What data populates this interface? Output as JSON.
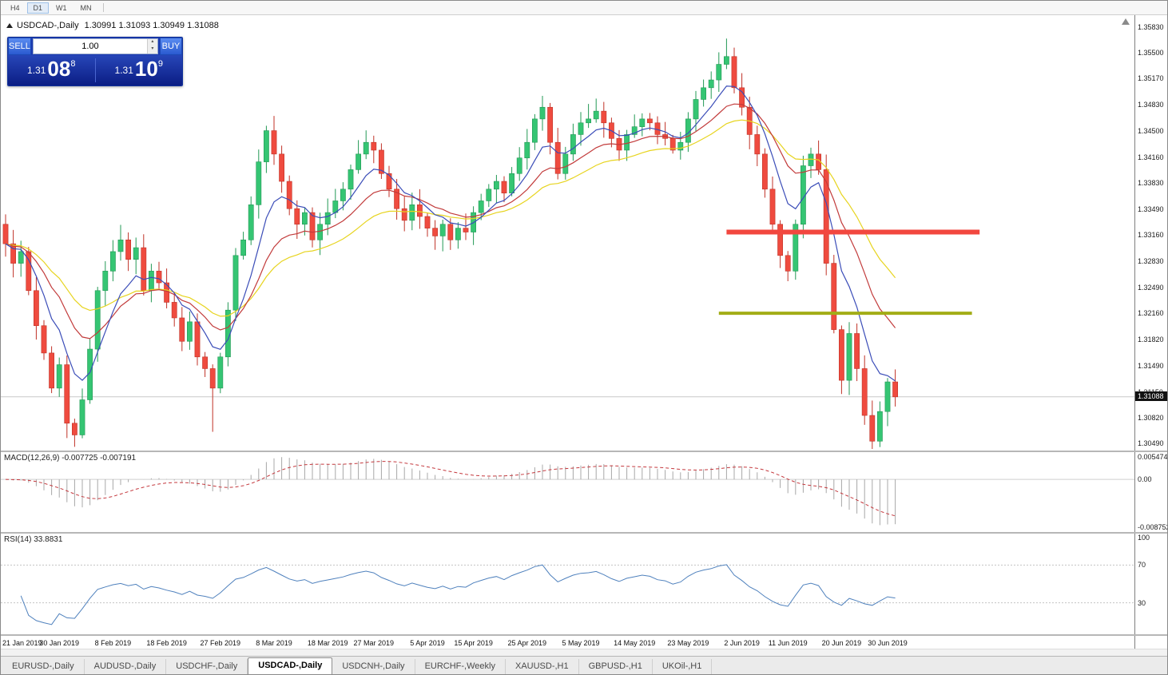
{
  "toolbar": {
    "timeframes": [
      {
        "label": "H4",
        "active": false
      },
      {
        "label": "D1",
        "active": true
      },
      {
        "label": "W1",
        "active": false
      },
      {
        "label": "MN",
        "active": false
      }
    ]
  },
  "chart": {
    "symbol_title": "USDCAD-,Daily",
    "ohlc_line": "1.30991 1.31093 1.30949 1.31088"
  },
  "trade_panel": {
    "sell_label": "SELL",
    "buy_label": "BUY",
    "lot_value": "1.00",
    "sell_price": {
      "prefix": "1.31",
      "big": "08",
      "sup": "8"
    },
    "buy_price": {
      "prefix": "1.31",
      "big": "10",
      "sup": "9"
    }
  },
  "price_axis": {
    "ticks": [
      "1.35830",
      "1.35500",
      "1.35170",
      "1.34830",
      "1.34500",
      "1.34160",
      "1.33830",
      "1.33490",
      "1.33160",
      "1.32830",
      "1.32490",
      "1.32160",
      "1.31820",
      "1.31490",
      "1.31150",
      "1.30820",
      "1.30490"
    ],
    "current_label": "1.31088"
  },
  "macd_panel": {
    "label": "MACD(12,26,9) -0.007725 -0.007191",
    "axis_top": "0.005474",
    "axis_zero": "0.00",
    "axis_bottom": "-0.008752"
  },
  "rsi_panel": {
    "label": "RSI(14) 33.8831",
    "axis_labels": [
      "100",
      "70",
      "30"
    ]
  },
  "tabs": [
    {
      "label": "EURUSD-,Daily",
      "active": false
    },
    {
      "label": "AUDUSD-,Daily",
      "active": false
    },
    {
      "label": "USDCHF-,Daily",
      "active": false
    },
    {
      "label": "USDCAD-,Daily",
      "active": true
    },
    {
      "label": "USDCNH-,Daily",
      "active": false
    },
    {
      "label": "EURCHF-,Weekly",
      "active": false
    },
    {
      "label": "XAUUSD-,H1",
      "active": false
    },
    {
      "label": "GBPUSD-,H1",
      "active": false
    },
    {
      "label": "UKOil-,H1",
      "active": false
    }
  ],
  "chart_data": {
    "type": "candlestick",
    "symbol": "USDCAD",
    "timeframe": "Daily",
    "ohlc_display": {
      "open": 1.30991,
      "high": 1.31093,
      "low": 1.30949,
      "close": 1.31088
    },
    "current_price": 1.31088,
    "y_range": [
      1.304,
      1.3598
    ],
    "first_open": 1.333,
    "closes": [
      1.3305,
      1.328,
      1.3295,
      1.3245,
      1.32,
      1.3165,
      1.312,
      1.315,
      1.3075,
      1.306,
      1.3105,
      1.317,
      1.3245,
      1.327,
      1.3295,
      1.331,
      1.3285,
      1.33,
      1.3245,
      1.327,
      1.3255,
      1.323,
      1.321,
      1.318,
      1.3205,
      1.316,
      1.3145,
      1.312,
      1.316,
      1.322,
      1.329,
      1.331,
      1.3355,
      1.341,
      1.345,
      1.342,
      1.3385,
      1.335,
      1.333,
      1.3345,
      1.331,
      1.333,
      1.3345,
      1.336,
      1.3375,
      1.34,
      1.342,
      1.3435,
      1.3425,
      1.3395,
      1.3375,
      1.335,
      1.3335,
      1.3355,
      1.334,
      1.3325,
      1.3315,
      1.333,
      1.331,
      1.3325,
      1.332,
      1.3345,
      1.336,
      1.3375,
      1.3385,
      1.337,
      1.3395,
      1.3415,
      1.3435,
      1.3465,
      1.348,
      1.3435,
      1.3395,
      1.342,
      1.3445,
      1.346,
      1.3465,
      1.3475,
      1.346,
      1.344,
      1.3425,
      1.3445,
      1.3455,
      1.3465,
      1.346,
      1.3445,
      1.344,
      1.3425,
      1.3435,
      1.3465,
      1.349,
      1.3505,
      1.3515,
      1.3535,
      1.3545,
      1.3505,
      1.348,
      1.3445,
      1.342,
      1.3375,
      1.333,
      1.329,
      1.327,
      1.333,
      1.3405,
      1.342,
      1.34,
      1.328,
      1.3195,
      1.313,
      1.319,
      1.3145,
      1.3085,
      1.3052,
      1.309,
      1.3128,
      1.31088
    ],
    "wick_overrides": [
      {
        "i": 8,
        "l": 1.3056
      },
      {
        "i": 27,
        "l": 1.3064
      },
      {
        "i": 94,
        "h": 1.3568
      },
      {
        "i": 113,
        "l": 1.3042
      }
    ],
    "candle_colors": {
      "up": "#35c573",
      "up_border": "#239955",
      "down": "#ef4b3f",
      "down_border": "#c03227"
    },
    "moving_averages": [
      {
        "period": 26,
        "type": "ema",
        "color": "#e7d41f"
      },
      {
        "period": 15,
        "type": "ema",
        "color": "#c23b3b"
      },
      {
        "period": 7,
        "type": "ema",
        "color": "#3b4db8"
      }
    ],
    "hlines": [
      {
        "name": "resistance-line",
        "price": 1.332,
        "color": "#f2473f",
        "width": 6,
        "from_i": 94,
        "to_i": 127
      },
      {
        "name": "support-line",
        "price": 1.3216,
        "color": "#a2ad16",
        "width": 4,
        "from_i": 93,
        "to_i": 126
      }
    ],
    "x_ticks": [
      [
        "21 Jan 2019",
        0
      ],
      [
        "30 Jan 2019",
        7
      ],
      [
        "8 Feb 2019",
        14
      ],
      [
        "18 Feb 2019",
        21
      ],
      [
        "27 Feb 2019",
        28
      ],
      [
        "8 Mar 2019",
        35
      ],
      [
        "18 Mar 2019",
        42
      ],
      [
        "27 Mar 2019",
        48
      ],
      [
        "5 Apr 2019",
        55
      ],
      [
        "15 Apr 2019",
        61
      ],
      [
        "25 Apr 2019",
        68
      ],
      [
        "5 May 2019",
        75
      ],
      [
        "14 May 2019",
        82
      ],
      [
        "23 May 2019",
        89
      ],
      [
        "2 Jun 2019",
        96
      ],
      [
        "11 Jun 2019",
        102
      ],
      [
        "20 Jun 2019",
        109
      ],
      [
        "30 Jun 2019",
        115
      ]
    ],
    "indicators": {
      "macd": {
        "fast": 12,
        "slow": 26,
        "signal": 9,
        "value": -0.007725,
        "signal_value": -0.007191,
        "axis_range": [
          -0.008752,
          0.005474
        ]
      },
      "rsi": {
        "period": 14,
        "value": 33.8831,
        "levels": [
          70,
          30
        ],
        "axis_range": [
          0,
          100
        ]
      }
    }
  }
}
